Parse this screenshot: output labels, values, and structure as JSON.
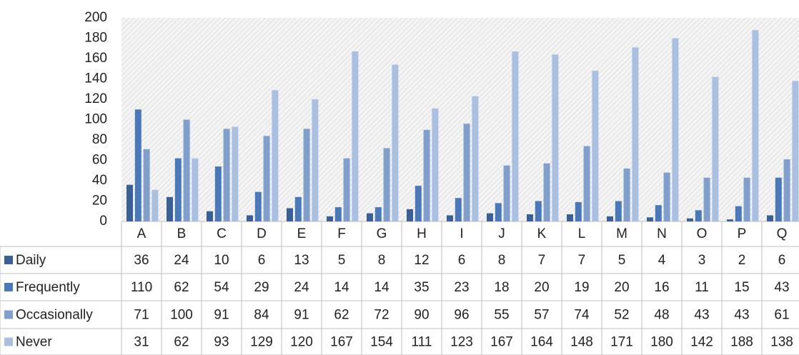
{
  "chart_data": {
    "type": "bar",
    "categories": [
      "A",
      "B",
      "C",
      "D",
      "E",
      "F",
      "G",
      "H",
      "I",
      "J",
      "K",
      "L",
      "M",
      "N",
      "O",
      "P",
      "Q"
    ],
    "series": [
      {
        "name": "Daily",
        "color": "#3b5f97",
        "values": [
          36,
          24,
          10,
          6,
          13,
          5,
          8,
          12,
          6,
          8,
          7,
          7,
          5,
          4,
          3,
          2,
          6
        ]
      },
      {
        "name": "Frequently",
        "color": "#4a78b8",
        "values": [
          110,
          62,
          54,
          29,
          24,
          14,
          14,
          35,
          23,
          18,
          20,
          19,
          20,
          16,
          11,
          15,
          43
        ]
      },
      {
        "name": "Occasionally",
        "color": "#809fcd",
        "values": [
          71,
          100,
          91,
          84,
          91,
          62,
          72,
          90,
          96,
          55,
          57,
          74,
          52,
          48,
          43,
          43,
          61
        ]
      },
      {
        "name": "Never",
        "color": "#abc0e0",
        "values": [
          31,
          62,
          93,
          129,
          120,
          167,
          154,
          111,
          123,
          167,
          164,
          148,
          171,
          180,
          142,
          188,
          138
        ]
      }
    ],
    "ylim": [
      0,
      200
    ],
    "yticks": [
      0,
      20,
      40,
      60,
      80,
      100,
      120,
      140,
      160,
      180,
      200
    ],
    "grid": false
  }
}
